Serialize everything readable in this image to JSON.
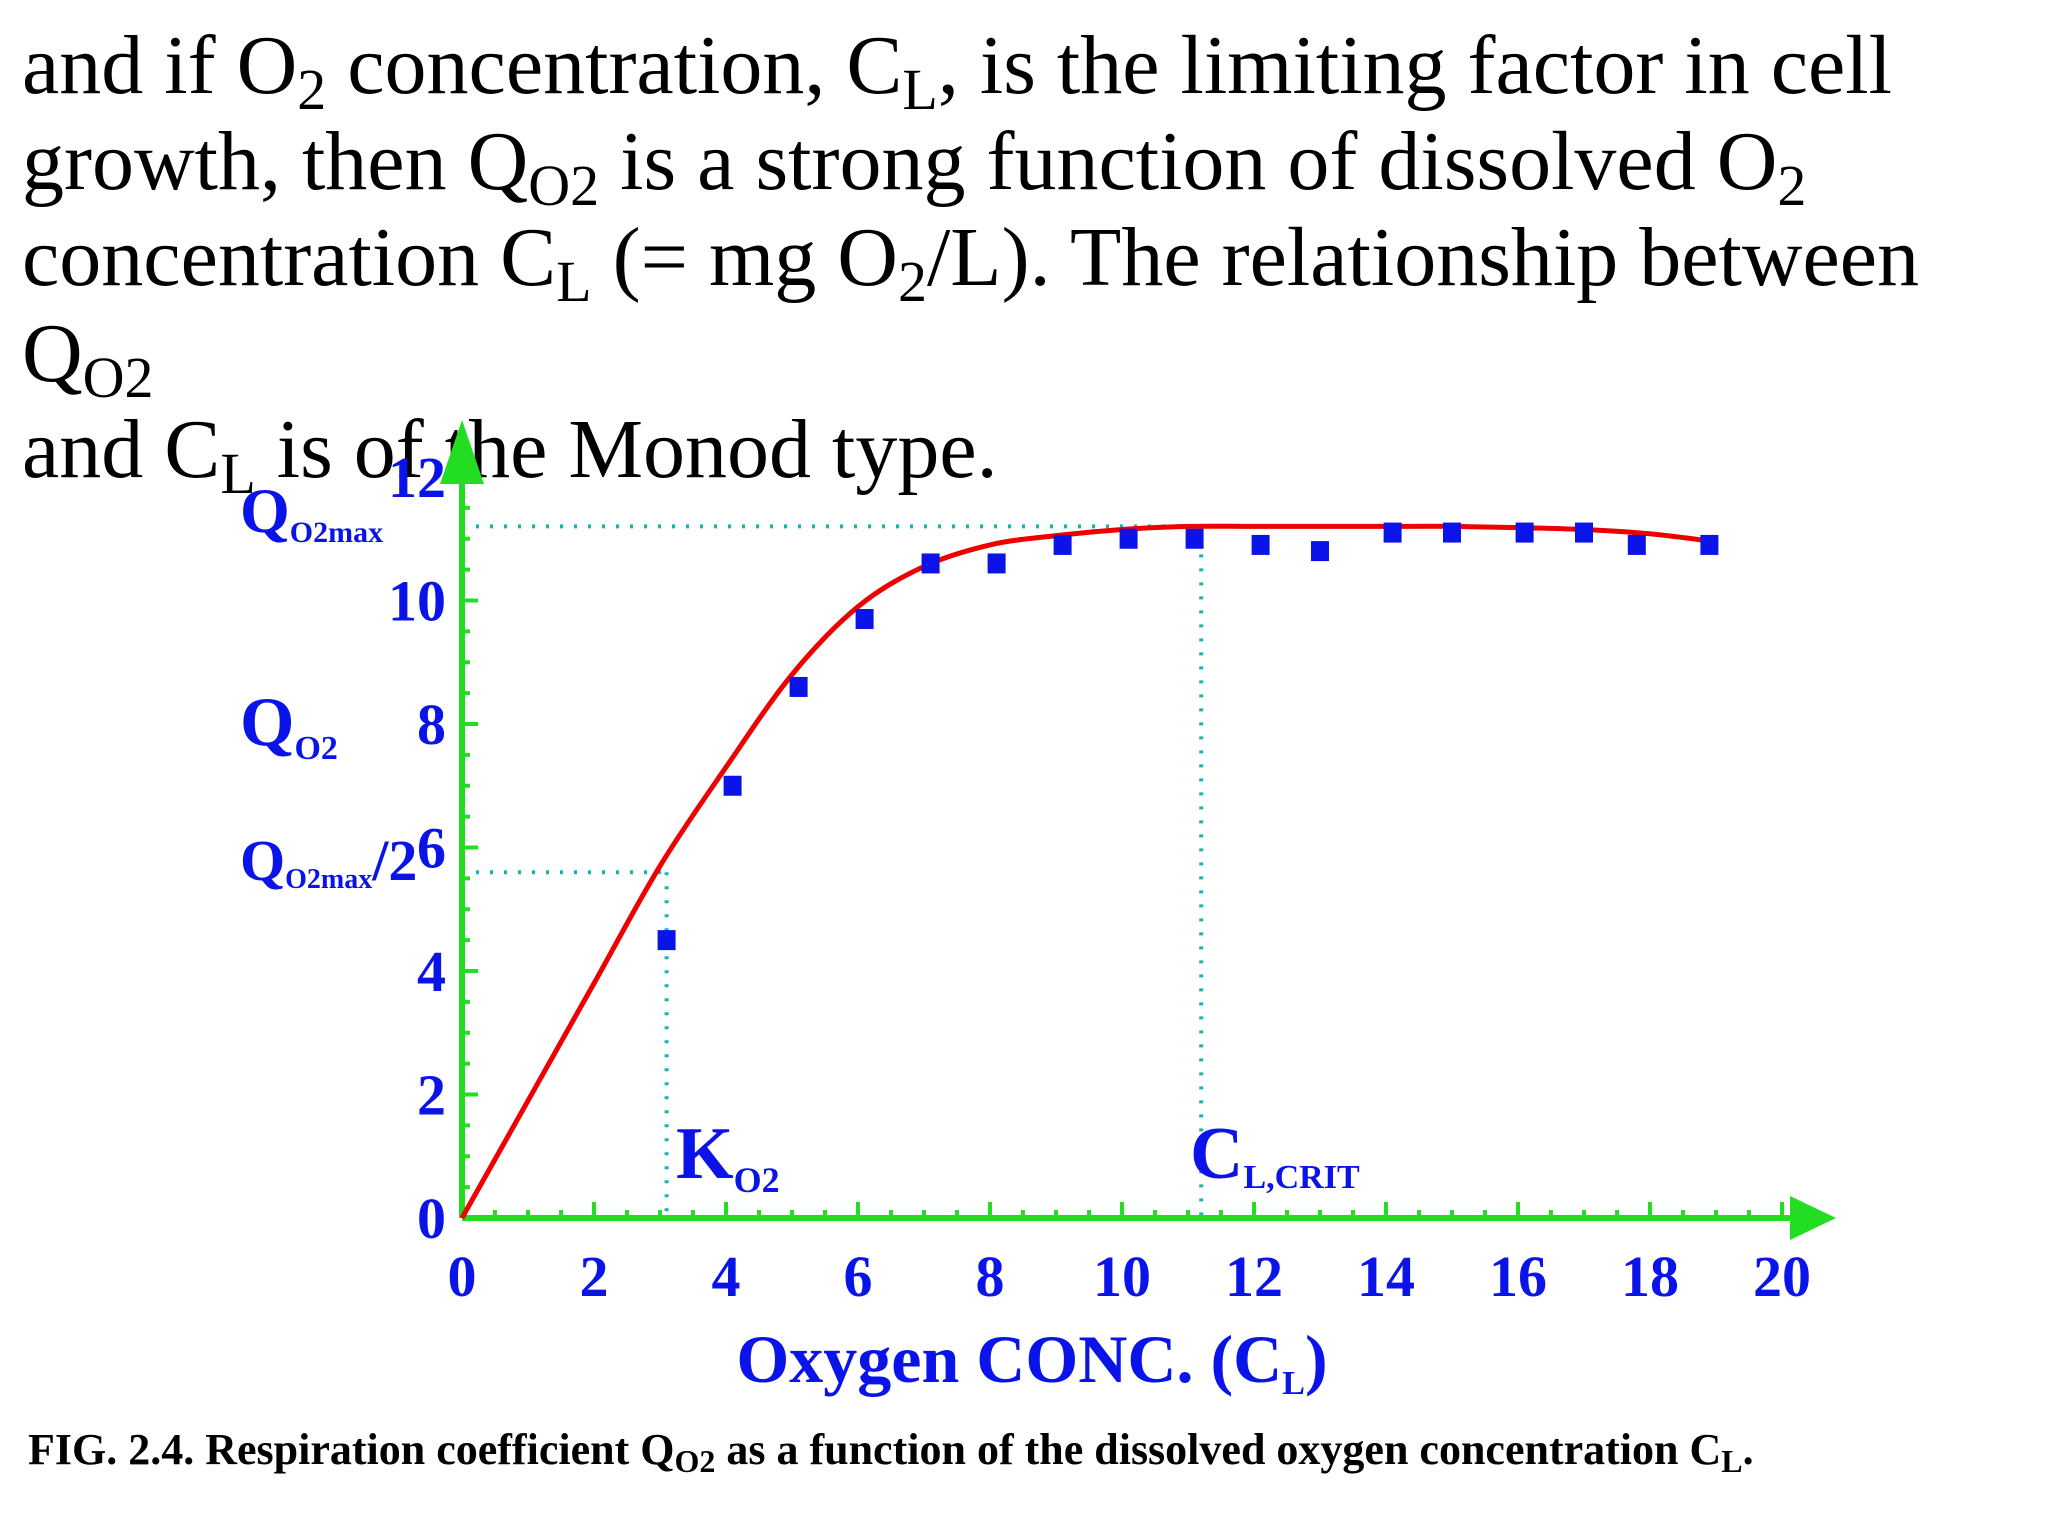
{
  "intro": {
    "l1_a": "and if O",
    "l1_sub1": "2",
    "l1_b": " concentration, C",
    "l1_sub2": "L",
    "l1_c": ", is the limiting factor in cell",
    "l2_a": "growth, then Q",
    "l2_sub1": "O2",
    "l2_b": " is a strong function of dissolved O",
    "l2_sub2": "2",
    "l3_a": "concentration C",
    "l3_sub1": "L",
    "l3_b": " (= mg O",
    "l3_sub2": "2",
    "l3_c": "/L). The relationship between Q",
    "l3_sub3": "O2",
    "l4_a": "and C",
    "l4_sub1": "L",
    "l4_b": " is of the Monod type."
  },
  "chart_data": {
    "type": "scatter",
    "x_ticks": [
      "0",
      "2",
      "4",
      "6",
      "8",
      "10",
      "12",
      "14",
      "16",
      "18",
      "20"
    ],
    "y_ticks": [
      "0",
      "2",
      "4",
      "6",
      "8",
      "10",
      "12"
    ],
    "xlim": [
      0,
      20
    ],
    "ylim": [
      0,
      12
    ],
    "xlabel": "Oxygen CONC. (C",
    "xlabel_sub": "L",
    "xlabel_end": ")",
    "ylabel": "Q",
    "ylabel_sub": "O2",
    "qmax_label": "Q",
    "qmax_sub": "O2max",
    "qhalf_label": "Q",
    "qhalf_sub": "O2max",
    "qhalf_div": "2",
    "k_label": "K",
    "k_sub": "O2",
    "ccrit_label": "C",
    "ccrit_sub": "L,CRIT",
    "k_value": 3.1,
    "ccrit_value": 11.2,
    "qmax_value": 11.2,
    "qhalf_value": 5.6,
    "grid": false,
    "series": [
      {
        "type": "scatter",
        "x": [
          3.1,
          4.1,
          5.1,
          6.1,
          7.1,
          8.1,
          9.1,
          10.1,
          11.1,
          12.1,
          13.0,
          14.1,
          15.0,
          16.1,
          17.0,
          17.8,
          18.9
        ],
        "y": [
          4.5,
          7.0,
          8.6,
          9.7,
          10.6,
          10.6,
          10.9,
          11.0,
          11.0,
          10.9,
          10.8,
          11.1,
          11.1,
          11.1,
          11.1,
          10.9,
          10.9
        ]
      },
      {
        "type": "line",
        "x": [
          0,
          1,
          2,
          3,
          4,
          5,
          6,
          7,
          8,
          9,
          10,
          11,
          12,
          13,
          14,
          15,
          16,
          17,
          18,
          19
        ],
        "y": [
          0,
          1.9,
          3.8,
          5.7,
          7.3,
          8.8,
          9.9,
          10.55,
          10.9,
          11.05,
          11.15,
          11.2,
          11.2,
          11.2,
          11.2,
          11.2,
          11.18,
          11.15,
          11.08,
          10.95
        ]
      }
    ],
    "colors": {
      "axis": "#22dd22",
      "points": "#0a14e8",
      "curve": "#ee0000",
      "guides": "#19b3b3",
      "labels": "#0a14e8"
    }
  },
  "caption": {
    "a": "FIG. 2.4. Respiration coefficient Q",
    "sub1": "O2",
    "b": " as a function of the dissolved oxygen concentration C",
    "sub2": "L",
    "c": "."
  }
}
